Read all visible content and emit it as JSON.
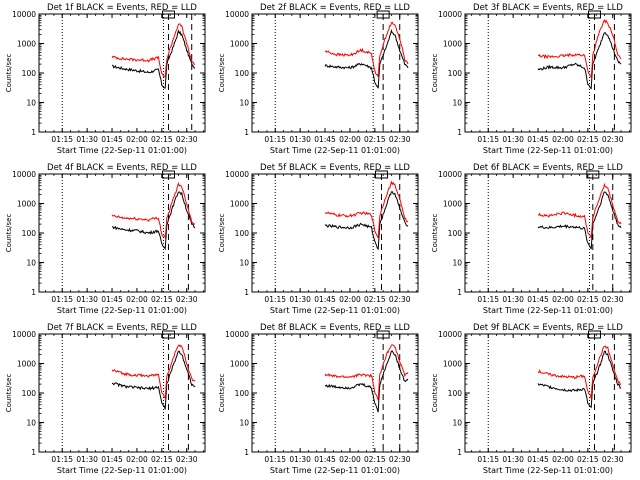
{
  "figure": {
    "xaxis_title": "Start Time (22-Sep-11 01:01:00)",
    "yaxis_title": "Counts/sec",
    "x_tick_labels": [
      "01:15",
      "01:30",
      "01:45",
      "02:00",
      "02:15",
      "02:30"
    ],
    "y_tick_labels": [
      "1",
      "10",
      "100",
      "1000",
      "10000"
    ],
    "colors": {
      "events": "#000000",
      "lld": "#ff0000",
      "axes": "#000000"
    }
  },
  "chart_data": [
    {
      "type": "line",
      "title": "Det 1f BLACK = Events, RED = LLD",
      "x_range": [
        "01:01",
        "02:41"
      ],
      "ylim": [
        1,
        10000
      ],
      "yscale": "log",
      "x_ticks": [
        "01:15",
        "01:30",
        "01:45",
        "02:00",
        "02:15",
        "02:30"
      ],
      "y_ticks": [
        1,
        10,
        100,
        1000,
        10000
      ],
      "dotted_lines": [
        "01:15",
        "02:16"
      ],
      "dashed_lines": [
        "02:19",
        "02:33"
      ],
      "series": [
        {
          "name": "Events",
          "x": [
            "01:45",
            "01:52",
            "02:00",
            "02:07",
            "02:13",
            "02:15",
            "02:17",
            "02:18",
            "02:22",
            "02:25",
            "02:27",
            "02:30",
            "02:33",
            "02:35"
          ],
          "y": [
            170,
            140,
            120,
            105,
            130,
            40,
            30,
            200,
            800,
            2500,
            2000,
            600,
            200,
            150
          ]
        },
        {
          "name": "LLD",
          "x": [
            "01:45",
            "01:52",
            "02:00",
            "02:07",
            "02:13",
            "02:15",
            "02:17",
            "02:18",
            "02:22",
            "02:25",
            "02:27",
            "02:30",
            "02:33",
            "02:35"
          ],
          "y": [
            350,
            300,
            280,
            270,
            330,
            90,
            70,
            300,
            1500,
            4500,
            3800,
            1000,
            250,
            200
          ]
        }
      ]
    },
    {
      "type": "line",
      "title": "Det 2f BLACK = Events, RED = LLD",
      "x_range": [
        "01:01",
        "02:41"
      ],
      "ylim": [
        1,
        10000
      ],
      "yscale": "log",
      "x_ticks": [
        "01:15",
        "01:30",
        "01:45",
        "02:00",
        "02:15",
        "02:30"
      ],
      "y_ticks": [
        1,
        10,
        100,
        1000,
        10000
      ],
      "dotted_lines": [
        "01:15",
        "02:14"
      ],
      "dashed_lines": [
        "02:20",
        "02:30"
      ],
      "series": [
        {
          "name": "Events",
          "x": [
            "01:45",
            "01:52",
            "02:00",
            "02:07",
            "02:13",
            "02:15",
            "02:17",
            "02:18",
            "02:22",
            "02:25",
            "02:27",
            "02:30",
            "02:33",
            "02:35"
          ],
          "y": [
            180,
            160,
            150,
            210,
            150,
            50,
            30,
            200,
            800,
            2500,
            2000,
            600,
            200,
            150
          ]
        },
        {
          "name": "LLD",
          "x": [
            "01:45",
            "01:52",
            "02:00",
            "02:07",
            "02:13",
            "02:15",
            "02:17",
            "02:18",
            "02:22",
            "02:25",
            "02:27",
            "02:30",
            "02:33",
            "02:35"
          ],
          "y": [
            550,
            420,
            400,
            600,
            450,
            120,
            70,
            400,
            2000,
            5000,
            4200,
            1500,
            300,
            200
          ]
        }
      ]
    },
    {
      "type": "line",
      "title": "Det 3f BLACK = Events, RED = LLD",
      "x_range": [
        "01:01",
        "02:41"
      ],
      "ylim": [
        1,
        10000
      ],
      "yscale": "log",
      "x_ticks": [
        "01:15",
        "01:30",
        "01:45",
        "02:00",
        "02:15",
        "02:30"
      ],
      "y_ticks": [
        1,
        10,
        100,
        1000,
        10000
      ],
      "dotted_lines": [
        "01:15",
        "02:16"
      ],
      "dashed_lines": [
        "02:19",
        "02:31"
      ],
      "series": [
        {
          "name": "Events",
          "x": [
            "01:45",
            "01:52",
            "02:00",
            "02:07",
            "02:13",
            "02:15",
            "02:17",
            "02:18",
            "02:22",
            "02:25",
            "02:27",
            "02:30",
            "02:33",
            "02:35"
          ],
          "y": [
            130,
            160,
            150,
            200,
            150,
            45,
            30,
            200,
            800,
            2500,
            2000,
            700,
            250,
            200
          ]
        },
        {
          "name": "LLD",
          "x": [
            "01:45",
            "01:52",
            "02:00",
            "02:07",
            "02:13",
            "02:15",
            "02:17",
            "02:18",
            "02:22",
            "02:25",
            "02:27",
            "02:30",
            "02:33",
            "02:35"
          ],
          "y": [
            380,
            350,
            380,
            420,
            400,
            120,
            70,
            400,
            2500,
            6000,
            5000,
            2000,
            400,
            300
          ]
        }
      ]
    },
    {
      "type": "line",
      "title": "Det 4f BLACK = Events, RED = LLD",
      "x_range": [
        "01:01",
        "02:41"
      ],
      "ylim": [
        1,
        10000
      ],
      "yscale": "log",
      "x_ticks": [
        "01:15",
        "01:30",
        "01:45",
        "02:00",
        "02:15",
        "02:30"
      ],
      "y_ticks": [
        1,
        10,
        100,
        1000,
        10000
      ],
      "dotted_lines": [
        "01:15",
        "02:16"
      ],
      "dashed_lines": [
        "02:19",
        "02:31"
      ],
      "series": [
        {
          "name": "Events",
          "x": [
            "01:45",
            "01:52",
            "02:00",
            "02:07",
            "02:13",
            "02:15",
            "02:17",
            "02:18",
            "02:22",
            "02:25",
            "02:27",
            "02:30",
            "02:33",
            "02:35"
          ],
          "y": [
            160,
            130,
            120,
            100,
            120,
            40,
            30,
            200,
            900,
            2600,
            2100,
            600,
            200,
            150
          ]
        },
        {
          "name": "LLD",
          "x": [
            "01:45",
            "01:52",
            "02:00",
            "02:07",
            "02:13",
            "02:15",
            "02:17",
            "02:18",
            "02:22",
            "02:25",
            "02:27",
            "02:30",
            "02:33",
            "02:35"
          ],
          "y": [
            380,
            320,
            300,
            280,
            330,
            90,
            70,
            300,
            1500,
            4500,
            3800,
            1000,
            250,
            200
          ]
        }
      ]
    },
    {
      "type": "line",
      "title": "Det 5f BLACK = Events, RED = LLD",
      "x_range": [
        "01:01",
        "02:41"
      ],
      "ylim": [
        1,
        10000
      ],
      "yscale": "log",
      "x_ticks": [
        "01:15",
        "01:30",
        "01:45",
        "02:00",
        "02:15",
        "02:30"
      ],
      "y_ticks": [
        1,
        10,
        100,
        1000,
        10000
      ],
      "dotted_lines": [
        "01:15",
        "02:14"
      ],
      "dashed_lines": [
        "02:19",
        "02:30"
      ],
      "series": [
        {
          "name": "Events",
          "x": [
            "01:45",
            "01:52",
            "02:00",
            "02:07",
            "02:13",
            "02:15",
            "02:17",
            "02:18",
            "02:22",
            "02:25",
            "02:27",
            "02:30",
            "02:33",
            "02:35"
          ],
          "y": [
            180,
            160,
            150,
            200,
            150,
            50,
            30,
            200,
            900,
            2600,
            2100,
            700,
            220,
            180
          ]
        },
        {
          "name": "LLD",
          "x": [
            "01:45",
            "01:52",
            "02:00",
            "02:07",
            "02:13",
            "02:15",
            "02:17",
            "02:18",
            "02:22",
            "02:25",
            "02:27",
            "02:30",
            "02:33",
            "02:35"
          ],
          "y": [
            500,
            400,
            380,
            480,
            420,
            120,
            70,
            400,
            2000,
            5000,
            4200,
            1500,
            300,
            250
          ]
        }
      ]
    },
    {
      "type": "line",
      "title": "Det 6f BLACK = Events, RED = LLD",
      "x_range": [
        "01:01",
        "02:41"
      ],
      "ylim": [
        1,
        10000
      ],
      "yscale": "log",
      "x_ticks": [
        "01:15",
        "01:30",
        "01:45",
        "02:00",
        "02:15",
        "02:30"
      ],
      "y_ticks": [
        1,
        10,
        100,
        1000,
        10000
      ],
      "dotted_lines": [
        "01:15",
        "02:16"
      ],
      "dashed_lines": [
        "02:18",
        "02:30"
      ],
      "series": [
        {
          "name": "Events",
          "x": [
            "01:45",
            "01:52",
            "02:00",
            "02:07",
            "02:13",
            "02:15",
            "02:17",
            "02:18",
            "02:22",
            "02:25",
            "02:27",
            "02:30",
            "02:33",
            "02:35"
          ],
          "y": [
            160,
            150,
            170,
            160,
            140,
            45,
            30,
            200,
            800,
            2500,
            2000,
            600,
            200,
            150
          ]
        },
        {
          "name": "LLD",
          "x": [
            "01:45",
            "01:52",
            "02:00",
            "02:07",
            "02:13",
            "02:15",
            "02:17",
            "02:18",
            "02:22",
            "02:25",
            "02:27",
            "02:30",
            "02:33",
            "02:35"
          ],
          "y": [
            420,
            380,
            480,
            400,
            360,
            110,
            70,
            350,
            1500,
            4000,
            3300,
            900,
            250,
            200
          ]
        }
      ]
    },
    {
      "type": "line",
      "title": "Det 7f BLACK = Events, RED = LLD",
      "x_range": [
        "01:01",
        "02:41"
      ],
      "ylim": [
        1,
        10000
      ],
      "yscale": "log",
      "x_ticks": [
        "01:15",
        "01:30",
        "01:45",
        "02:00",
        "02:15",
        "02:30"
      ],
      "y_ticks": [
        1,
        10,
        100,
        1000,
        10000
      ],
      "dotted_lines": [
        "01:15",
        "02:16"
      ],
      "dashed_lines": [
        "02:19",
        "02:31"
      ],
      "series": [
        {
          "name": "Events",
          "x": [
            "01:45",
            "01:52",
            "02:00",
            "02:07",
            "02:13",
            "02:15",
            "02:17",
            "02:18",
            "02:22",
            "02:25",
            "02:27",
            "02:30",
            "02:33",
            "02:35"
          ],
          "y": [
            220,
            170,
            150,
            140,
            160,
            45,
            30,
            200,
            900,
            2600,
            2100,
            650,
            200,
            160
          ]
        },
        {
          "name": "LLD",
          "x": [
            "01:45",
            "01:52",
            "02:00",
            "02:07",
            "02:13",
            "02:15",
            "02:17",
            "02:18",
            "02:22",
            "02:25",
            "02:27",
            "02:30",
            "02:33",
            "02:35"
          ],
          "y": [
            600,
            450,
            400,
            380,
            420,
            110,
            70,
            350,
            1600,
            4500,
            3800,
            1000,
            300,
            250
          ]
        }
      ]
    },
    {
      "type": "line",
      "title": "Det 8f BLACK = Events, RED = LLD",
      "x_range": [
        "01:01",
        "02:41"
      ],
      "ylim": [
        1,
        10000
      ],
      "yscale": "log",
      "x_ticks": [
        "01:15",
        "01:30",
        "01:45",
        "02:00",
        "02:15",
        "02:30"
      ],
      "y_ticks": [
        1,
        10,
        100,
        1000,
        10000
      ],
      "dotted_lines": [
        "01:15",
        "02:14"
      ],
      "dashed_lines": [
        "02:20",
        "02:30"
      ],
      "series": [
        {
          "name": "Events",
          "x": [
            "01:45",
            "01:52",
            "02:00",
            "02:07",
            "02:13",
            "02:15",
            "02:17",
            "02:18",
            "02:22",
            "02:25",
            "02:27",
            "02:30",
            "02:33",
            "02:35"
          ],
          "y": [
            180,
            160,
            150,
            200,
            150,
            45,
            25,
            200,
            900,
            2600,
            2100,
            700,
            250,
            300
          ]
        },
        {
          "name": "LLD",
          "x": [
            "01:45",
            "01:52",
            "02:00",
            "02:07",
            "02:13",
            "02:15",
            "02:17",
            "02:18",
            "02:22",
            "02:25",
            "02:27",
            "02:30",
            "02:33",
            "02:35"
          ],
          "y": [
            420,
            360,
            350,
            420,
            380,
            110,
            60,
            400,
            2000,
            4500,
            3800,
            1200,
            400,
            500
          ]
        }
      ]
    },
    {
      "type": "line",
      "title": "Det 9f BLACK = Events, RED = LLD",
      "x_range": [
        "01:01",
        "02:41"
      ],
      "ylim": [
        1,
        10000
      ],
      "yscale": "log",
      "x_ticks": [
        "01:15",
        "01:30",
        "01:45",
        "02:00",
        "02:15",
        "02:30"
      ],
      "y_ticks": [
        1,
        10,
        100,
        1000,
        10000
      ],
      "dotted_lines": [
        "01:15",
        "02:16"
      ],
      "dashed_lines": [
        "02:19",
        "02:31"
      ],
      "series": [
        {
          "name": "Events",
          "x": [
            "01:45",
            "01:52",
            "02:00",
            "02:07",
            "02:13",
            "02:15",
            "02:17",
            "02:18",
            "02:22",
            "02:25",
            "02:27",
            "02:30",
            "02:33",
            "02:35"
          ],
          "y": [
            200,
            160,
            130,
            120,
            140,
            45,
            30,
            200,
            800,
            2500,
            2000,
            600,
            200,
            150
          ]
        },
        {
          "name": "LLD",
          "x": [
            "01:45",
            "01:52",
            "02:00",
            "02:07",
            "02:13",
            "02:15",
            "02:17",
            "02:18",
            "02:22",
            "02:25",
            "02:27",
            "02:30",
            "02:33",
            "02:35"
          ],
          "y": [
            550,
            420,
            360,
            340,
            380,
            110,
            70,
            350,
            1500,
            4000,
            3300,
            900,
            250,
            200
          ]
        }
      ]
    }
  ]
}
